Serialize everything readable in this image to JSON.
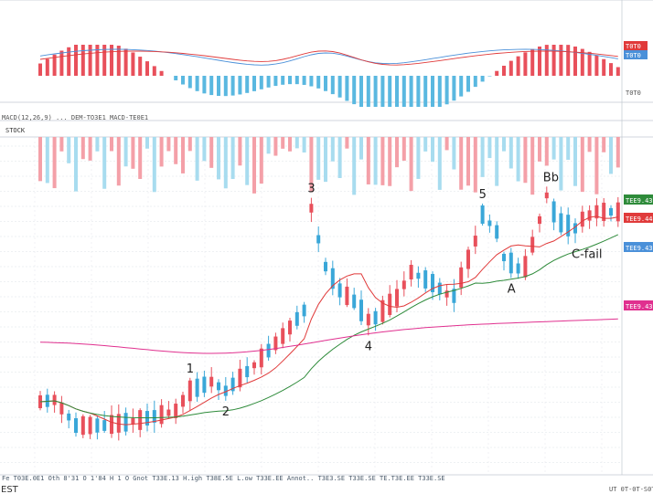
{
  "chart_data": [
    {
      "panel": "macd",
      "type": "bar",
      "series": [
        {
          "name": "MACD",
          "color": "#4a90d9"
        },
        {
          "name": "Signal",
          "color": "#e03a3a"
        }
      ],
      "badges": [
        {
          "text": "T0T0",
          "color": "#e03a3a"
        },
        {
          "text": "T0T0",
          "color": "#4a90d9"
        }
      ],
      "axis_labels": [
        "T0T0"
      ]
    },
    {
      "panel": "volume",
      "type": "bar",
      "header": "MACD(12,26,9) ...  DEM-TO3E1  MACD-TE0E1",
      "tag": "STOCK",
      "colors": {
        "up": "#f4a0a8",
        "down": "#a8dcef"
      }
    },
    {
      "panel": "price",
      "type": "candlestick",
      "colors": {
        "up": "#e8505b",
        "down": "#3aa7d8",
        "ma_fast": "#e03a3a",
        "ma_mid": "#2e8b3a",
        "ma_slow": "#e0308f"
      },
      "annotations": [
        {
          "text": "1",
          "index": 21
        },
        {
          "text": "2",
          "index": 26
        },
        {
          "text": "3",
          "index": 38
        },
        {
          "text": "4",
          "index": 46
        },
        {
          "text": "5",
          "index": 62
        },
        {
          "text": "A",
          "index": 66
        },
        {
          "text": "Bb",
          "index": 71
        },
        {
          "text": "C-fail",
          "index": 75
        }
      ],
      "price_badges": [
        {
          "text": "TEE9.43",
          "color": "#2e8b3a"
        },
        {
          "text": "TEE9.44",
          "color": "#e03a3a"
        },
        {
          "text": "TEE9.43",
          "color": "#4a90d9"
        },
        {
          "text": "TEE9.43",
          "color": "#e0308f"
        }
      ],
      "status_bar": "Fe  T03E.0E1 Oth 8'31 O 1'84 H 1 O Gnot T33E.13 H.igh T38E.5E L.ow T33E.EE  Annot.. T3E3.SE T33E.SE  TE.T3E.EE  T33E.SE",
      "corner_label": "EST",
      "date_label": "UT 0T-0T-S0T"
    }
  ]
}
